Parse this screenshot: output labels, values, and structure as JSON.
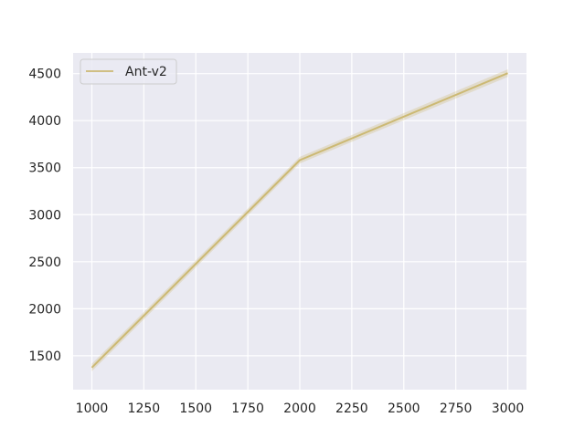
{
  "chart_data": {
    "type": "line",
    "title": "",
    "xlabel": "",
    "ylabel": "",
    "xlim": [
      910,
      3090
    ],
    "ylim": [
      1140,
      4720
    ],
    "x_ticks": [
      1000,
      1250,
      1500,
      1750,
      2000,
      2250,
      2500,
      2750,
      3000
    ],
    "y_ticks": [
      1500,
      2000,
      2500,
      3000,
      3500,
      4000,
      4500
    ],
    "grid": true,
    "legend_position": "top-left",
    "background_color": "#eaeaf2",
    "series": [
      {
        "name": "Ant-v2",
        "color": "#ccb974",
        "x": [
          1000,
          2000,
          3000
        ],
        "y": [
          1375,
          3580,
          4505
        ],
        "band_lower": [
          1335,
          3545,
          4465
        ],
        "band_upper": [
          1415,
          3615,
          4545
        ]
      }
    ]
  }
}
